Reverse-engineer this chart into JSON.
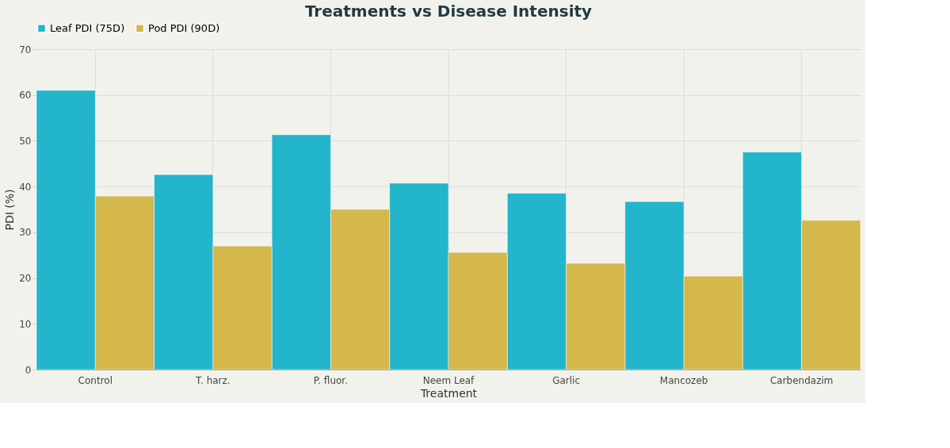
{
  "chart_data": {
    "type": "bar",
    "title": "Treatments vs Disease Intensity",
    "xlabel": "Treatment",
    "ylabel": "PDI (%)",
    "categories": [
      "Control",
      "T. harz.",
      "P. fluor.",
      "Neem Leaf",
      "Garlic",
      "Mancozeb",
      "Carbendazim"
    ],
    "series": [
      {
        "name": "Leaf PDI (75D)",
        "color": "#22b5cc",
        "values": [
          61.0,
          42.6,
          51.3,
          40.7,
          38.5,
          36.7,
          47.5
        ]
      },
      {
        "name": "Pod PDI (90D)",
        "color": "#d4b84c",
        "values": [
          37.9,
          27.0,
          35.0,
          25.6,
          23.2,
          20.4,
          32.6
        ]
      }
    ],
    "ylim": [
      0,
      70
    ],
    "yticks": [
      0,
      10,
      20,
      30,
      40,
      50,
      60,
      70
    ],
    "grid": true,
    "legend": "top"
  }
}
